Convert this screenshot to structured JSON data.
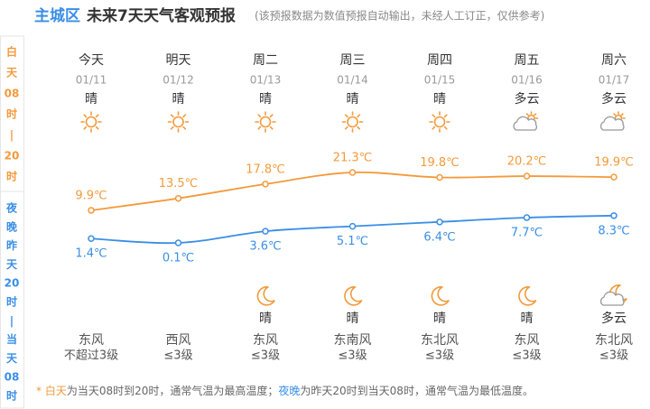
{
  "header": {
    "location": "主城区",
    "title": "未来7天天气客观预报",
    "note": "(该预报数据为数值预报自动输出，未经人工订正，仅供参考)"
  },
  "side": {
    "day": [
      "白",
      "天",
      "08",
      "时",
      "|",
      "20",
      "时"
    ],
    "night": [
      "夜",
      "晚",
      "昨",
      "天",
      "20",
      "时",
      "|",
      "当",
      "天",
      "08",
      "时"
    ]
  },
  "chart_data": {
    "type": "line",
    "categories": [
      "今天",
      "明天",
      "周二",
      "周三",
      "周四",
      "周五",
      "周六"
    ],
    "dates": [
      "01/11",
      "01/12",
      "01/13",
      "01/14",
      "01/15",
      "01/16",
      "01/17"
    ],
    "day_weather": [
      "晴",
      "晴",
      "晴",
      "晴",
      "晴",
      "多云",
      "多云"
    ],
    "night_weather": [
      null,
      null,
      "晴",
      "晴",
      "晴",
      "晴",
      "多云"
    ],
    "wind_direction": [
      "东风",
      "西风",
      "东风",
      "东南风",
      "东北风",
      "东风",
      "东北风"
    ],
    "wind_level": [
      "不超过3级",
      "≤3级",
      "≤3级",
      "≤3级",
      "≤3级",
      "≤3级",
      "≤3级"
    ],
    "series": [
      {
        "color": "#f39a3b",
        "values": [
          9.9,
          13.5,
          17.8,
          21.3,
          19.8,
          20.2,
          19.9
        ],
        "value_labels": [
          "9.9℃",
          "13.5℃",
          "17.8℃",
          "21.3℃",
          "19.8℃",
          "20.2℃",
          "19.9℃"
        ]
      },
      {
        "color": "#3a8ee6",
        "values": [
          1.4,
          0.1,
          3.6,
          5.1,
          6.4,
          7.7,
          8.3
        ],
        "value_labels": [
          "1.4℃",
          "0.1℃",
          "3.6℃",
          "5.1℃",
          "6.4℃",
          "7.7℃",
          "8.3℃"
        ]
      }
    ]
  },
  "footer": [
    "* ",
    "白天",
    "为当天08时到20时，通常气温为最高温度；",
    "夜晚",
    "为昨天20时到当天08时，通常气温为最低温度。"
  ]
}
